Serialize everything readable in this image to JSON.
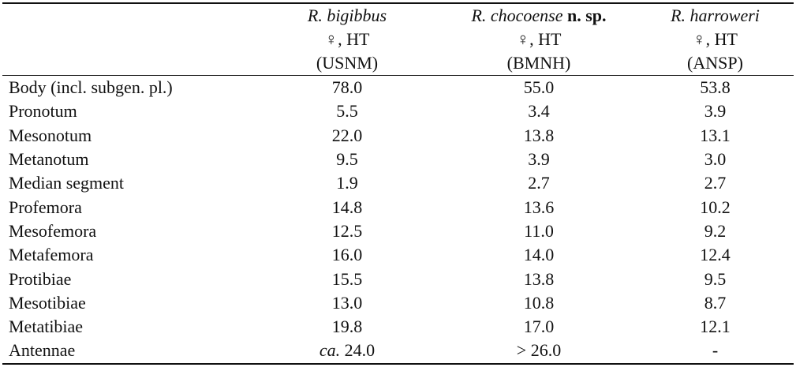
{
  "table": {
    "columns": [
      {
        "name": "R. bigibbus",
        "suffix": "",
        "specimen": "♀, HT",
        "institution": "(USNM)"
      },
      {
        "name": "R. chocoense",
        "suffix": "n. sp.",
        "specimen": "♀, HT",
        "institution": "(BMNH)"
      },
      {
        "name": "R. harroweri",
        "suffix": "",
        "specimen": "♀, HT",
        "institution": "(ANSP)"
      }
    ],
    "rows": [
      {
        "label": "Body (incl. subgen. pl.)",
        "values": [
          "78.0",
          "55.0",
          "53.8"
        ]
      },
      {
        "label": "Pronotum",
        "values": [
          "5.5",
          "3.4",
          "3.9"
        ]
      },
      {
        "label": "Mesonotum",
        "values": [
          "22.0",
          "13.8",
          "13.1"
        ]
      },
      {
        "label": "Metanotum",
        "values": [
          "9.5",
          "3.9",
          "3.0"
        ]
      },
      {
        "label": "Median segment",
        "values": [
          "1.9",
          "2.7",
          "2.7"
        ]
      },
      {
        "label": "Profemora",
        "values": [
          "14.8",
          "13.6",
          "10.2"
        ]
      },
      {
        "label": "Mesofemora",
        "values": [
          "12.5",
          "11.0",
          "9.2"
        ]
      },
      {
        "label": "Metafemora",
        "values": [
          "16.0",
          "14.0",
          "12.4"
        ]
      },
      {
        "label": "Protibiae",
        "values": [
          "15.5",
          "13.8",
          "9.5"
        ]
      },
      {
        "label": "Mesotibiae",
        "values": [
          "13.0",
          "10.8",
          "8.7"
        ]
      },
      {
        "label": "Metatibiae",
        "values": [
          "19.8",
          "17.0",
          "12.1"
        ]
      }
    ],
    "antennae": {
      "label": "Antennae",
      "sp1_prefix": "ca.",
      "sp1_value": " 24.0",
      "sp2_value": "> 26.0",
      "sp3_value": "-"
    }
  }
}
